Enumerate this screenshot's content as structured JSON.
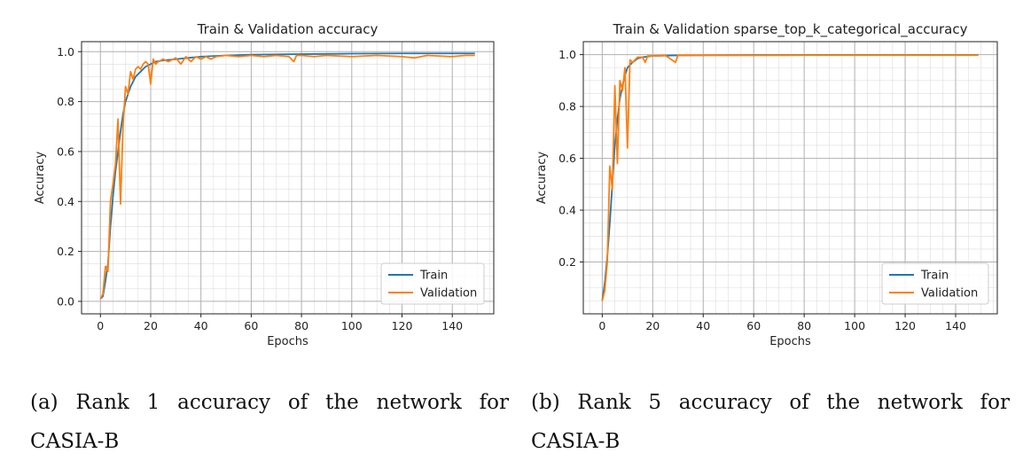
{
  "chart_data": [
    {
      "type": "line",
      "title": "Train & Validation accuracy",
      "xlabel": "Epochs",
      "ylabel": "Accuracy",
      "xlim": [
        -7.5,
        156.5
      ],
      "ylim": [
        -0.05,
        1.04
      ],
      "xticks": [
        0,
        20,
        40,
        60,
        80,
        100,
        120,
        140
      ],
      "yticks": [
        0.0,
        0.2,
        0.4,
        0.6,
        0.8,
        1.0
      ],
      "ytick_labels": [
        "0.0",
        "0.2",
        "0.4",
        "0.6",
        "0.8",
        "1.0"
      ],
      "grid": true,
      "legend": "bottom-right",
      "series": [
        {
          "name": "Train",
          "color": "#1f77b4",
          "points": [
            [
              0,
              0.01
            ],
            [
              1,
              0.02
            ],
            [
              2,
              0.08
            ],
            [
              3,
              0.15
            ],
            [
              4,
              0.3
            ],
            [
              5,
              0.42
            ],
            [
              6,
              0.52
            ],
            [
              7,
              0.6
            ],
            [
              8,
              0.68
            ],
            [
              9,
              0.75
            ],
            [
              10,
              0.8
            ],
            [
              11,
              0.83
            ],
            [
              12,
              0.86
            ],
            [
              13,
              0.88
            ],
            [
              14,
              0.9
            ],
            [
              16,
              0.92
            ],
            [
              18,
              0.94
            ],
            [
              20,
              0.95
            ],
            [
              22,
              0.96
            ],
            [
              25,
              0.965
            ],
            [
              30,
              0.97
            ],
            [
              35,
              0.975
            ],
            [
              40,
              0.98
            ],
            [
              50,
              0.985
            ],
            [
              60,
              0.988
            ],
            [
              80,
              0.99
            ],
            [
              100,
              0.992
            ],
            [
              120,
              0.993
            ],
            [
              149,
              0.993
            ]
          ]
        },
        {
          "name": "Validation",
          "color": "#ff7f0e",
          "points": [
            [
              0,
              0.01
            ],
            [
              1,
              0.03
            ],
            [
              2,
              0.14
            ],
            [
              3,
              0.12
            ],
            [
              4,
              0.4
            ],
            [
              5,
              0.47
            ],
            [
              6,
              0.55
            ],
            [
              7,
              0.73
            ],
            [
              8,
              0.39
            ],
            [
              9,
              0.7
            ],
            [
              10,
              0.86
            ],
            [
              11,
              0.83
            ],
            [
              12,
              0.92
            ],
            [
              13,
              0.89
            ],
            [
              14,
              0.93
            ],
            [
              15,
              0.94
            ],
            [
              16,
              0.93
            ],
            [
              17,
              0.95
            ],
            [
              18,
              0.96
            ],
            [
              19,
              0.95
            ],
            [
              20,
              0.87
            ],
            [
              21,
              0.97
            ],
            [
              22,
              0.95
            ],
            [
              23,
              0.96
            ],
            [
              25,
              0.97
            ],
            [
              27,
              0.96
            ],
            [
              30,
              0.975
            ],
            [
              32,
              0.95
            ],
            [
              34,
              0.98
            ],
            [
              36,
              0.96
            ],
            [
              38,
              0.98
            ],
            [
              40,
              0.97
            ],
            [
              42,
              0.98
            ],
            [
              44,
              0.97
            ],
            [
              46,
              0.98
            ],
            [
              50,
              0.985
            ],
            [
              55,
              0.98
            ],
            [
              60,
              0.985
            ],
            [
              65,
              0.98
            ],
            [
              70,
              0.985
            ],
            [
              75,
              0.98
            ],
            [
              77,
              0.96
            ],
            [
              78,
              0.985
            ],
            [
              80,
              0.985
            ],
            [
              85,
              0.98
            ],
            [
              90,
              0.985
            ],
            [
              100,
              0.98
            ],
            [
              110,
              0.985
            ],
            [
              120,
              0.98
            ],
            [
              125,
              0.975
            ],
            [
              130,
              0.985
            ],
            [
              140,
              0.98
            ],
            [
              145,
              0.985
            ],
            [
              149,
              0.985
            ]
          ]
        }
      ]
    },
    {
      "type": "line",
      "title": "Train & Validation sparse_top_k_categorical_accuracy",
      "xlabel": "Epochs",
      "ylabel": "Accuracy",
      "xlim": [
        -7.5,
        156.5
      ],
      "ylim": [
        0.0,
        1.05
      ],
      "xticks": [
        0,
        20,
        40,
        60,
        80,
        100,
        120,
        140
      ],
      "yticks": [
        0.2,
        0.4,
        0.6,
        0.8,
        1.0
      ],
      "ytick_labels": [
        "0.2",
        "0.4",
        "0.6",
        "0.8",
        "1.0"
      ],
      "grid": true,
      "legend": "bottom-right",
      "series": [
        {
          "name": "Train",
          "color": "#1f77b4",
          "points": [
            [
              0,
              0.05
            ],
            [
              1,
              0.12
            ],
            [
              2,
              0.22
            ],
            [
              3,
              0.35
            ],
            [
              4,
              0.5
            ],
            [
              5,
              0.65
            ],
            [
              6,
              0.75
            ],
            [
              7,
              0.83
            ],
            [
              8,
              0.88
            ],
            [
              9,
              0.92
            ],
            [
              10,
              0.95
            ],
            [
              12,
              0.97
            ],
            [
              14,
              0.985
            ],
            [
              16,
              0.99
            ],
            [
              20,
              0.995
            ],
            [
              30,
              0.997
            ],
            [
              50,
              0.998
            ],
            [
              80,
              0.999
            ],
            [
              149,
              0.999
            ]
          ]
        },
        {
          "name": "Validation",
          "color": "#ff7f0e",
          "points": [
            [
              0,
              0.05
            ],
            [
              1,
              0.09
            ],
            [
              2,
              0.2
            ],
            [
              3,
              0.57
            ],
            [
              4,
              0.48
            ],
            [
              5,
              0.88
            ],
            [
              6,
              0.58
            ],
            [
              7,
              0.9
            ],
            [
              8,
              0.86
            ],
            [
              9,
              0.95
            ],
            [
              10,
              0.64
            ],
            [
              11,
              0.98
            ],
            [
              12,
              0.97
            ],
            [
              14,
              0.99
            ],
            [
              16,
              0.99
            ],
            [
              17,
              0.97
            ],
            [
              18,
              0.995
            ],
            [
              20,
              0.995
            ],
            [
              25,
              0.997
            ],
            [
              29,
              0.97
            ],
            [
              30,
              0.998
            ],
            [
              40,
              0.998
            ],
            [
              60,
              0.997
            ],
            [
              80,
              0.998
            ],
            [
              100,
              0.998
            ],
            [
              120,
              0.998
            ],
            [
              149,
              0.998
            ]
          ]
        }
      ]
    }
  ],
  "captions": {
    "a": "(a) Rank 1 accuracy of the network for CASIA-B",
    "b": "(b) Rank 5 accuracy of the network for CASIA-B"
  }
}
